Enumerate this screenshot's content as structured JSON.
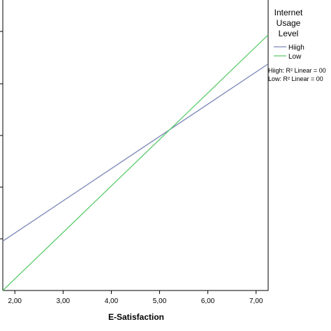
{
  "chart_data": {
    "type": "line",
    "xlabel": "E-Satisfaction",
    "xlim": [
      1.75,
      7.25
    ],
    "x_ticks": [
      "2,00",
      "3,00",
      "4,00",
      "5,00",
      "6,00",
      "7,00"
    ],
    "x_tick_values": [
      2,
      3,
      4,
      5,
      6,
      7
    ],
    "ylim": [
      0,
      1
    ],
    "legend": {
      "title_lines": [
        "Internet",
        "Usage",
        "Level"
      ],
      "placement": "right"
    },
    "series": [
      {
        "name": "High",
        "legend_label": "Hiigh",
        "color": "#7b86b6",
        "x": [
          1.75,
          7.25
        ],
        "y": [
          0.17,
          0.78
        ]
      },
      {
        "name": "Low",
        "legend_label": "Low",
        "color": "#5ccc6c",
        "x": [
          1.75,
          7.25
        ],
        "y": [
          0.0,
          0.88
        ]
      }
    ],
    "fit_labels": [
      "Hiigh: R² Linear = 00",
      "Low: R² Linear = 00"
    ]
  }
}
